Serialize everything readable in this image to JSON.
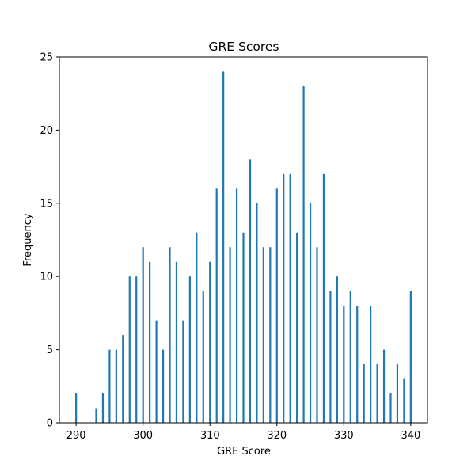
{
  "chart_data": {
    "type": "bar",
    "title": "GRE Scores",
    "xlabel": "GRE Score",
    "ylabel": "Frequency",
    "xlim": [
      287.5,
      342.5
    ],
    "ylim": [
      0,
      25
    ],
    "xticks": [
      290,
      300,
      310,
      320,
      330,
      340
    ],
    "yticks": [
      0,
      5,
      10,
      15,
      20,
      25
    ],
    "bar_color": "#1f77b4",
    "grid": false,
    "x": [
      290,
      293,
      294,
      295,
      296,
      297,
      298,
      299,
      300,
      301,
      302,
      303,
      304,
      305,
      306,
      307,
      308,
      309,
      310,
      311,
      312,
      313,
      314,
      315,
      316,
      317,
      318,
      319,
      320,
      321,
      322,
      323,
      324,
      325,
      326,
      327,
      328,
      329,
      330,
      331,
      332,
      333,
      334,
      335,
      336,
      337,
      338,
      339,
      340
    ],
    "values": [
      2,
      1,
      2,
      5,
      5,
      6,
      10,
      10,
      12,
      11,
      7,
      5,
      12,
      11,
      7,
      10,
      13,
      9,
      11,
      16,
      24,
      12,
      16,
      13,
      18,
      15,
      12,
      12,
      16,
      17,
      17,
      13,
      23,
      15,
      12,
      17,
      9,
      10,
      8,
      9,
      8,
      4,
      8,
      4,
      5,
      2,
      4,
      3,
      9
    ]
  }
}
